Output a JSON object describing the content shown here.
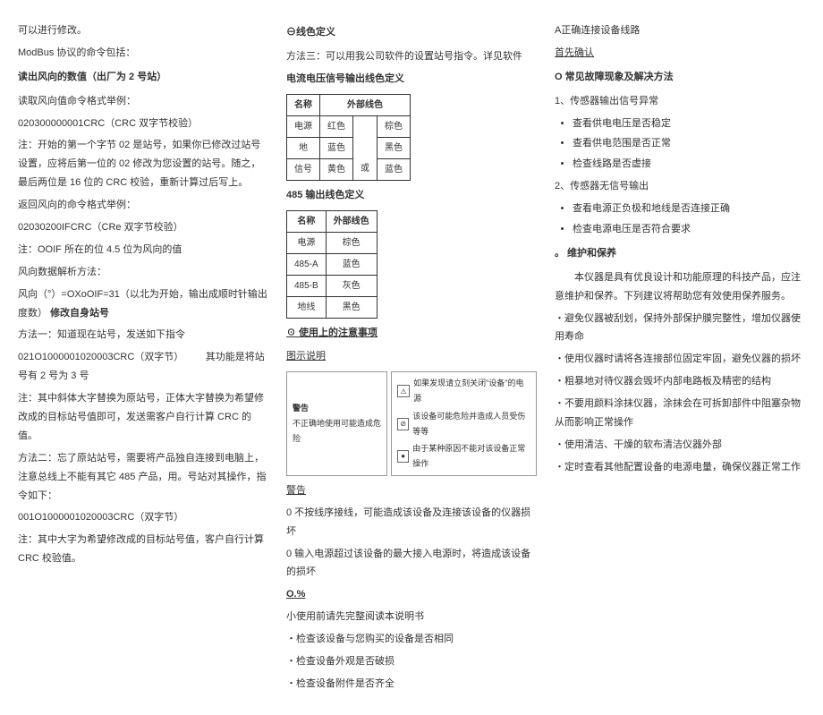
{
  "col1": {
    "p1": "可以进行修改。",
    "p2": "ModBus 协议的命令包括：",
    "h1": "读出风向的数值（出厂为 2 号站）",
    "p3": "读取风向值命令格式举例：",
    "p4": "020300000001CRC（CRC 双字节校验）",
    "p5": "注：开始的第一个字节 02 是站号，如果你已修改过站号设置，应将后第一位的 02 修改为您设置的站号。随之，最后两位是 16 位的 CRC 校验，重新计算过后写上。",
    "p6": "返回风向的命令格式举例：",
    "p7": "02030200IFCRC（CRe 双字节校验）",
    "p8": "注：OOIF 所在的位 4.5 位为风向的值",
    "p9": "风向数据解析方法：",
    "p10a": "风向（°）=OXoOIF=31（以北为开始，输出成顺时针输出度数）",
    "p10b": "修改自身站号",
    "p11": "方法一：知道现在站号，发送如下指令",
    "p12a": "021O1000001020003CRC（双字节）",
    "p12b": "其功能是将站号有 2 号为 3 号",
    "p13": "注：其中斜体大字替换为原站号，正体大字替换为希望修改成的目标站号值即可，发送需客户自行计算 CRC 的值。",
    "p14": "方法二：忘了原站站号，需要将产品独自连接到电脑上，注意总线上不能有其它 485 产品，用。号站对其操作，指令如下：",
    "p15": "001O1000001020003CRC（双字节）",
    "p16": "注：其中大字为希望修改成的目标站号值，客户自行计算 CRC 校验值。"
  },
  "col2": {
    "h1": "⊖线色定义",
    "p1": "方法三：可以用我公司软件的设置站号指令。详见软件",
    "h2": "电流电压信号输出线色定义",
    "t1": {
      "headers": [
        "名称",
        "外部线色"
      ],
      "rows": [
        [
          "电源",
          "红色",
          "",
          "棕色"
        ],
        [
          "地",
          "蓝色",
          "",
          "黑色"
        ],
        [
          "信号",
          "黄色",
          "或",
          "蓝色"
        ]
      ]
    },
    "h3": "485 输出线色定义",
    "t2": {
      "headers": [
        "名称",
        "外部线色"
      ],
      "rows": [
        [
          "电源",
          "棕色"
        ],
        [
          "485-A",
          "蓝色"
        ],
        [
          "485-B",
          "灰色"
        ],
        [
          "地线",
          "黑色"
        ]
      ]
    },
    "h4": "☉ 使用上的注意事项",
    "h5": "图示说明",
    "box1a": "警告",
    "box1b": "不正确地使用可能造成危险",
    "box2a": "如果发现请立刻关闭\"设备\"的电源",
    "box2b": "该设备可能危险并造成人员受伤等等",
    "box2c": "由于某种原因不能对该设备正常操作",
    "h6": "警告",
    "w1": "0 不按线序接线，可能造成该设备及连接该设备的仪器损坏",
    "w2": "0 输入电源超过该设备的最大接入电源时，将造成该设备的损坏",
    "h7": "O.%",
    "w3": "小使用前请先完整阅读本说明书",
    "w4": "・检查该设备与您购买的设备是否相同",
    "w5": "・检查设备外观是否破损",
    "w6": "・检查设备附件是否齐全"
  },
  "col3": {
    "p1": "A正确连接设备线路",
    "p2": "首先确认",
    "h1": "O 常见故障现象及解决方法",
    "s1": "1、传感器输出信号异常",
    "s1items": [
      "查看供电电压是否稳定",
      "查看供电范围是否正常",
      "检查线路是否虚接"
    ],
    "s2": "2、传感器无信号输出",
    "s2items": [
      "查看电源正负极和地线是否连接正确",
      "检查电源电压是否符合要求"
    ],
    "h2": "。 维护和保养",
    "p3": "　　本仪器是具有优良设计和功能原理的科技产品，应注意维护和保养。下列建议将帮助您有效使用保养服务。",
    "m1": "・避免仪器被刮划，保持外部保护膜完整性，增加仪器使用寿命",
    "m2": "・使用仪器时请将各连接部位固定牢固，避免仪器的损坏",
    "m3": "・粗暴地对待仪器会毁坏内部电路板及精密的结构",
    "m4": "・不要用颜料涂抹仪器，涂抹会在可拆卸部件中阻塞杂物从而影响正常操作",
    "m5": "・使用清洁、干燥的软布清洁仪器外部",
    "m6": "・定时查看其他配置设备的电源电量，确保仪器正常工作"
  }
}
